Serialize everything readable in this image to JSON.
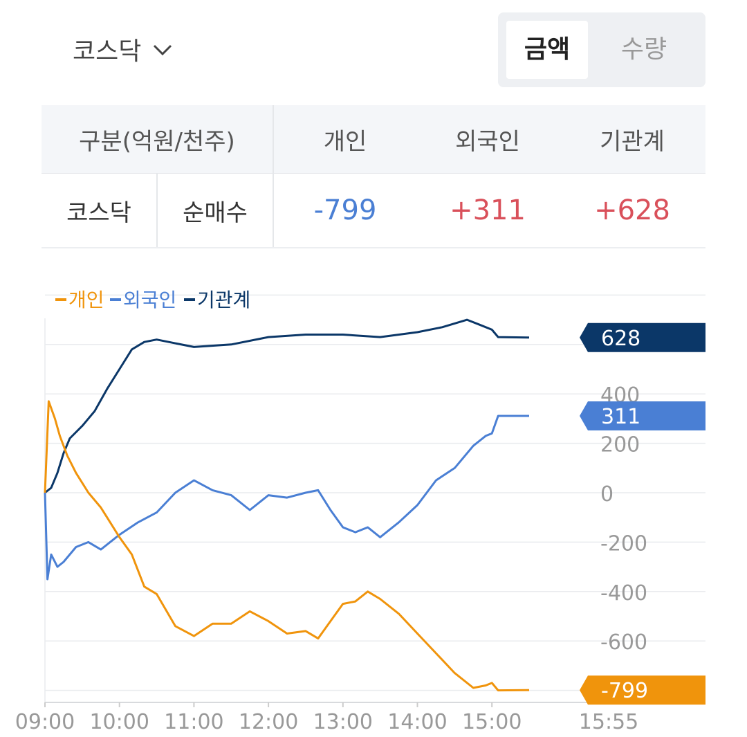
{
  "header": {
    "market": "코스닥",
    "toggle": {
      "active": "금액",
      "inactive": "수량"
    }
  },
  "table": {
    "header": {
      "category": "구분(억원/천주)",
      "individual": "개인",
      "foreign": "외국인",
      "institution": "기관계"
    },
    "row": {
      "market": "코스닥",
      "type": "순매수",
      "individual": "-799",
      "foreign": "+311",
      "institution": "+628"
    }
  },
  "colors": {
    "individual": "#f0940c",
    "foreign": "#4a7fd4",
    "institution": "#0b3768",
    "positive": "#d9505a",
    "negative": "#4a7fd4"
  },
  "chart_data": {
    "type": "line",
    "legend": [
      "개인",
      "외국인",
      "기관계"
    ],
    "legend_position": "top-left",
    "x_ticks": [
      "09:00",
      "10:00",
      "11:00",
      "12:00",
      "13:00",
      "14:00",
      "15:00",
      "15:55"
    ],
    "y_ticks": [
      "400",
      "200",
      "0",
      "-200",
      "-400",
      "-600"
    ],
    "ylim": [
      -830,
      660
    ],
    "grid": true,
    "series": [
      {
        "name": "개인",
        "end_label": "-799",
        "x": [
          "09:00",
          "09:03",
          "09:08",
          "09:12",
          "09:18",
          "09:25",
          "09:35",
          "09:45",
          "09:50",
          "10:00",
          "10:10",
          "10:20",
          "10:30",
          "10:45",
          "11:00",
          "11:15",
          "11:30",
          "11:45",
          "12:00",
          "12:15",
          "12:30",
          "12:40",
          "12:50",
          "13:00",
          "13:10",
          "13:20",
          "13:30",
          "13:45",
          "14:00",
          "14:15",
          "14:30",
          "14:45",
          "14:55",
          "15:00",
          "15:05",
          "15:30"
        ],
        "y": [
          0,
          370,
          300,
          230,
          150,
          80,
          0,
          -60,
          -100,
          -180,
          -250,
          -380,
          -410,
          -540,
          -580,
          -530,
          -530,
          -480,
          -520,
          -570,
          -560,
          -590,
          -520,
          -450,
          -440,
          -400,
          -430,
          -490,
          -570,
          -650,
          -730,
          -790,
          -780,
          -770,
          -800,
          -799
        ]
      },
      {
        "name": "외국인",
        "end_label": "311",
        "x": [
          "09:00",
          "09:02",
          "09:05",
          "09:10",
          "09:15",
          "09:25",
          "09:35",
          "09:45",
          "10:00",
          "10:15",
          "10:30",
          "10:45",
          "11:00",
          "11:15",
          "11:30",
          "11:45",
          "12:00",
          "12:15",
          "12:30",
          "12:40",
          "12:50",
          "13:00",
          "13:10",
          "13:20",
          "13:30",
          "13:45",
          "14:00",
          "14:15",
          "14:30",
          "14:45",
          "14:55",
          "15:00",
          "15:05",
          "15:30"
        ],
        "y": [
          0,
          -350,
          -250,
          -300,
          -280,
          -220,
          -200,
          -230,
          -170,
          -120,
          -80,
          0,
          50,
          10,
          -10,
          -70,
          -10,
          -20,
          0,
          10,
          -70,
          -140,
          -160,
          -140,
          -180,
          -120,
          -50,
          50,
          100,
          190,
          230,
          240,
          311,
          311
        ]
      },
      {
        "name": "기관계",
        "end_label": "628",
        "x": [
          "09:00",
          "09:05",
          "09:10",
          "09:15",
          "09:20",
          "09:30",
          "09:40",
          "09:50",
          "10:00",
          "10:10",
          "10:20",
          "10:30",
          "11:00",
          "11:30",
          "12:00",
          "12:30",
          "13:00",
          "13:30",
          "14:00",
          "14:20",
          "14:40",
          "14:50",
          "15:00",
          "15:05",
          "15:30"
        ],
        "y": [
          0,
          20,
          80,
          160,
          220,
          270,
          330,
          420,
          500,
          580,
          610,
          620,
          590,
          600,
          630,
          640,
          640,
          630,
          650,
          670,
          700,
          680,
          660,
          630,
          628
        ]
      }
    ]
  }
}
